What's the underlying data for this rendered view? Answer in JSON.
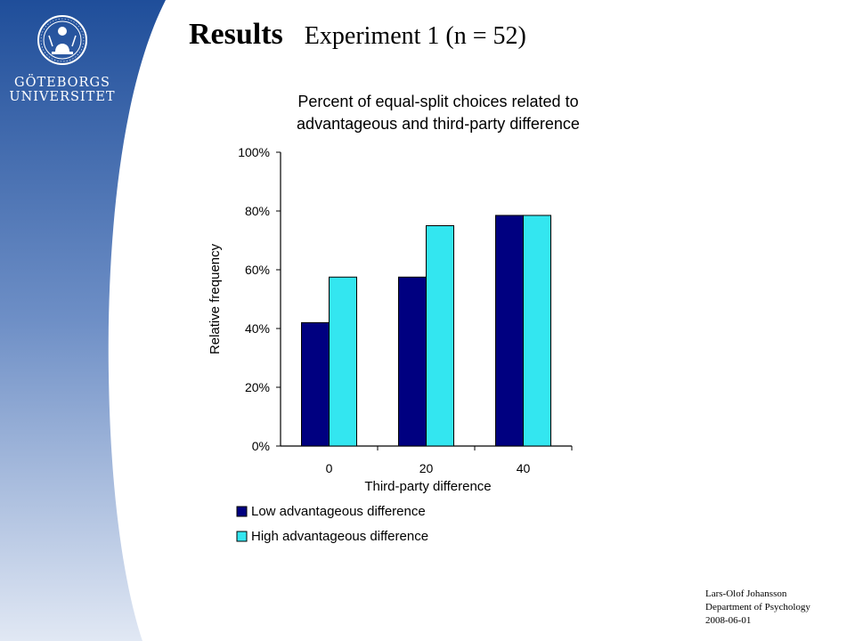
{
  "university": {
    "line1": "GÖTEBORGS",
    "line2": "UNIVERSITET",
    "logo": "university-seal-icon"
  },
  "slide": {
    "title": "Results",
    "subtitle": "Experiment 1 (n = 52)"
  },
  "footer": {
    "author": "Lars-Olof Johansson",
    "department": "Department of Psychology",
    "date": "2008-06-01"
  },
  "colors": {
    "sidebar_top": "#1F4E9A",
    "sidebar_bottom": "#E1E8F4",
    "series_low": "#000080",
    "series_high": "#33E6F0"
  },
  "chart_data": {
    "type": "bar",
    "title_line1": "Percent of equal-split choices related to",
    "title_line2": "advantageous and third-party difference",
    "xlabel": "Third-party difference",
    "ylabel": "Relative frequency",
    "categories": [
      "0",
      "20",
      "40"
    ],
    "yticks": [
      "0%",
      "20%",
      "40%",
      "60%",
      "80%",
      "100%"
    ],
    "ylim": [
      0,
      100
    ],
    "grid": false,
    "legend_position": "bottom",
    "series": [
      {
        "name": "Low advantageous difference",
        "values": [
          42,
          57.5,
          78.5
        ],
        "color": "#000080"
      },
      {
        "name": "High advantageous difference",
        "values": [
          57.5,
          75,
          78.5
        ],
        "color": "#33E6F0"
      }
    ]
  }
}
